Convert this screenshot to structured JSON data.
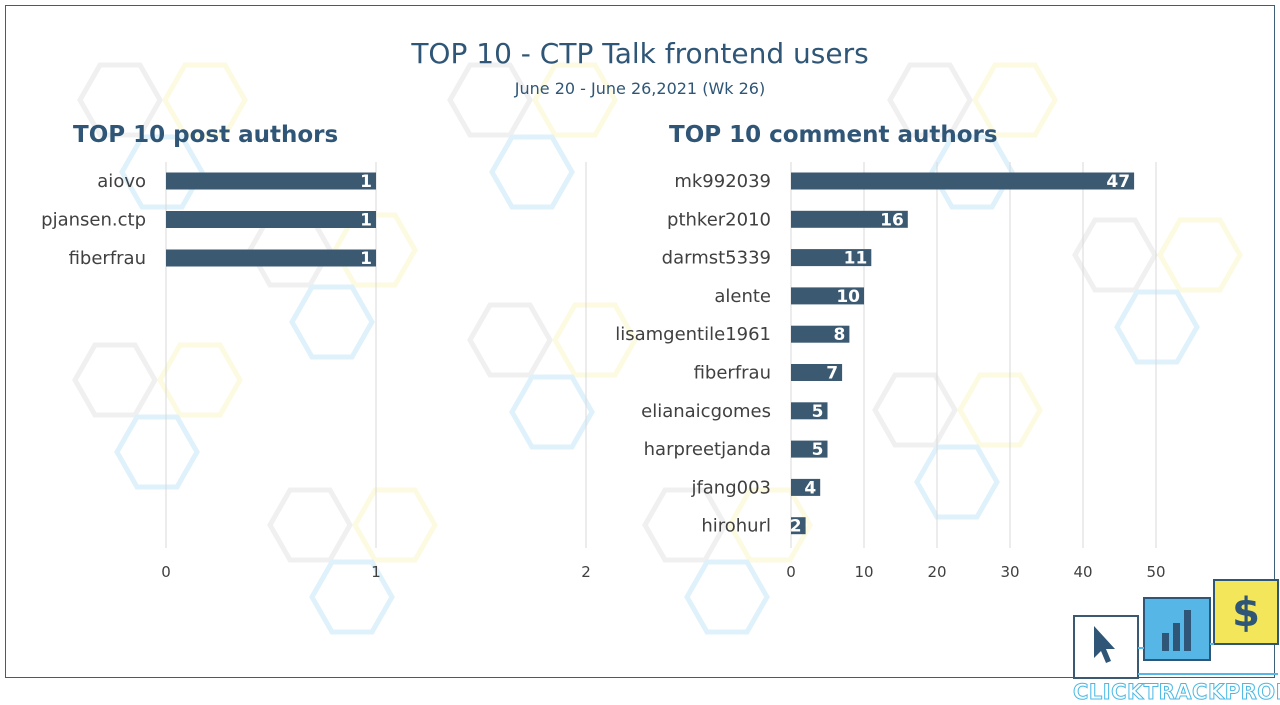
{
  "header": {
    "title": "TOP 10 - CTP Talk frontend users",
    "subtitle": "June 20 - June 26,2021 (Wk 26)"
  },
  "logo": {
    "text": "CLICKTRACKPROFIT",
    "icons": [
      "cursor-icon",
      "bar-chart-icon",
      "dollar-icon"
    ]
  },
  "colors": {
    "bar": "#3b5a72",
    "title": "#2f5676",
    "grid": "#d9d9d9",
    "label": "#404040",
    "watermark_yellow": "#f3e65a",
    "watermark_blue": "#56b7e6"
  },
  "chart_data": [
    {
      "type": "bar",
      "orientation": "horizontal",
      "title": "TOP 10 post authors",
      "categories": [
        "aiovo",
        "pjansen.ctp",
        "fiberfrau"
      ],
      "values": [
        1,
        1,
        1
      ],
      "xlim": [
        0,
        2
      ],
      "xticks": [
        0,
        1,
        2
      ],
      "grid": "vertical",
      "data_labels": true
    },
    {
      "type": "bar",
      "orientation": "horizontal",
      "title": "TOP 10 comment authors",
      "categories": [
        "mk992039",
        "pthker2010",
        "darmst5339",
        "alente",
        "lisamgentile1961",
        "fiberfrau",
        "elianaicgomes",
        "harpreetjanda",
        "jfang003",
        "hirohurl"
      ],
      "values": [
        47,
        16,
        11,
        10,
        8,
        7,
        5,
        5,
        4,
        2
      ],
      "xlim": [
        0,
        50
      ],
      "xticks": [
        0,
        10,
        20,
        30,
        40,
        50
      ],
      "grid": "vertical",
      "data_labels": true
    }
  ]
}
